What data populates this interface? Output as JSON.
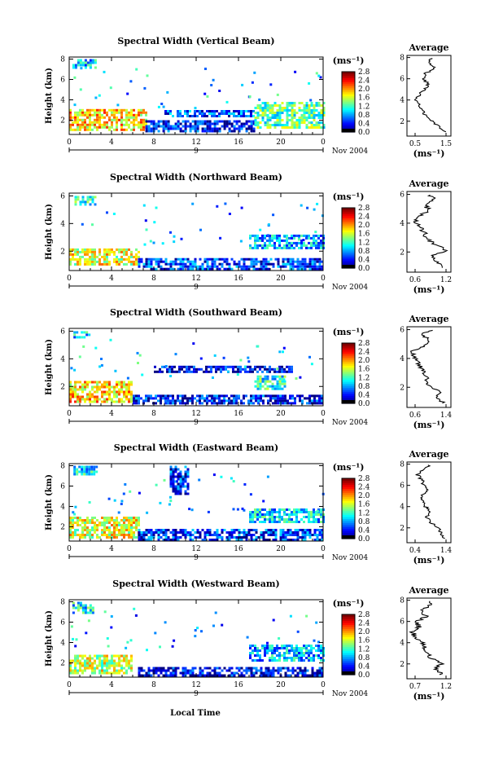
{
  "figure": {
    "xlabel": "Local Time",
    "date_label": "Nov 2004",
    "day_label": "9",
    "ylabel": "Height (km)",
    "unit_label": "(ms⁻¹)",
    "avg_title": "Average",
    "avg_xlabel": "(ms⁻¹)"
  },
  "chart_data": [
    {
      "type": "heatmap",
      "title": "Spectral Width (Vertical Beam)",
      "xlabel": "",
      "ylabel": "Height (km)",
      "xlim": [
        0,
        24
      ],
      "ylim": [
        0.6,
        8.2
      ],
      "xticks": [
        "0",
        "4",
        "8",
        "12",
        "16",
        "20",
        "0"
      ],
      "yticks": [
        "2",
        "4",
        "6",
        "8"
      ],
      "colorbar": {
        "label": "(ms⁻¹)",
        "ticks": [
          "0.0",
          "0.4",
          "0.8",
          "1.2",
          "1.6",
          "2.0",
          "2.4",
          "2.8"
        ],
        "range": [
          0,
          3.0
        ]
      },
      "regions": [
        {
          "t0": 0,
          "t1": 7.2,
          "h0": 1.1,
          "h1": 3.1,
          "level": 2.0
        },
        {
          "t0": 7.2,
          "t1": 17.5,
          "h0": 1.0,
          "h1": 2.0,
          "level": 0.4
        },
        {
          "t0": 9,
          "t1": 17.5,
          "h0": 2.5,
          "h1": 3.0,
          "level": 0.6
        },
        {
          "t0": 17.5,
          "t1": 24,
          "h0": 1.3,
          "h1": 3.8,
          "level": 1.4
        },
        {
          "t0": 0.3,
          "t1": 2.5,
          "h0": 7.2,
          "h1": 8.0,
          "level": 1.0
        }
      ],
      "average": {
        "xticks": [
          "0.5",
          "1.5"
        ],
        "xlim": [
          0.3,
          1.7
        ],
        "ylim": [
          0.6,
          8.2
        ],
        "yticks": [
          "2",
          "4",
          "6",
          "8"
        ],
        "h": [
          1.0,
          1.5,
          2.0,
          2.5,
          3.0,
          3.5,
          4.0,
          4.5,
          5.0,
          5.5,
          6.0,
          6.5,
          7.0,
          7.5,
          8.0
        ],
        "v": [
          1.5,
          1.3,
          1.1,
          0.9,
          0.8,
          0.7,
          0.55,
          0.7,
          0.85,
          1.0,
          0.8,
          0.9,
          1.2,
          1.0,
          1.1
        ]
      }
    },
    {
      "type": "heatmap",
      "title": "Spectral Width (Northward Beam)",
      "xlabel": "",
      "ylabel": "Height (km)",
      "xlim": [
        0,
        24
      ],
      "ylim": [
        0.6,
        6.2
      ],
      "xticks": [
        "0",
        "4",
        "8",
        "12",
        "16",
        "20",
        "0"
      ],
      "yticks": [
        "2",
        "4",
        "6"
      ],
      "colorbar": {
        "label": "(ms⁻¹)",
        "ticks": [
          "0.0",
          "0.4",
          "0.8",
          "1.2",
          "1.6",
          "2.0",
          "2.4",
          "2.8"
        ],
        "range": [
          0,
          3.0
        ]
      },
      "regions": [
        {
          "t0": 0,
          "t1": 6.5,
          "h0": 1.0,
          "h1": 2.2,
          "level": 1.8
        },
        {
          "t0": 6.5,
          "t1": 24,
          "h0": 0.7,
          "h1": 1.5,
          "level": 0.5
        },
        {
          "t0": 17,
          "t1": 24,
          "h0": 2.2,
          "h1": 3.2,
          "level": 0.9
        },
        {
          "t0": 0.5,
          "t1": 2.5,
          "h0": 5.4,
          "h1": 6.0,
          "level": 1.2
        }
      ],
      "average": {
        "xticks": [
          "0.6",
          "1.2"
        ],
        "xlim": [
          0.4,
          1.4
        ],
        "ylim": [
          0.6,
          6.2
        ],
        "yticks": [
          "2",
          "4",
          "6"
        ],
        "h": [
          0.9,
          1.3,
          1.7,
          2.1,
          2.5,
          2.9,
          3.3,
          3.7,
          4.1,
          4.5,
          4.9,
          5.3,
          5.7,
          6.0
        ],
        "v": [
          1.2,
          1.1,
          0.95,
          1.3,
          1.05,
          0.85,
          0.8,
          0.7,
          0.6,
          0.7,
          0.9,
          0.8,
          1.0,
          0.9
        ]
      }
    },
    {
      "type": "heatmap",
      "title": "Spectral Width (Southward Beam)",
      "xlabel": "",
      "ylabel": "Height (km)",
      "xlim": [
        0,
        24
      ],
      "ylim": [
        0.6,
        6.2
      ],
      "xticks": [
        "0",
        "4",
        "8",
        "12",
        "16",
        "20",
        "0"
      ],
      "yticks": [
        "2",
        "4",
        "6"
      ],
      "colorbar": {
        "label": "(ms⁻¹)",
        "ticks": [
          "0.0",
          "0.4",
          "0.8",
          "1.2",
          "1.6",
          "2.0",
          "2.4",
          "2.8"
        ],
        "range": [
          0,
          3.0
        ]
      },
      "regions": [
        {
          "t0": 0,
          "t1": 5.8,
          "h0": 0.9,
          "h1": 2.4,
          "level": 2.0
        },
        {
          "t0": 6,
          "t1": 24,
          "h0": 0.7,
          "h1": 1.4,
          "level": 0.4
        },
        {
          "t0": 8,
          "t1": 21,
          "h0": 3.0,
          "h1": 3.5,
          "level": 0.3
        },
        {
          "t0": 17.5,
          "t1": 20.5,
          "h0": 1.8,
          "h1": 2.8,
          "level": 1.2
        },
        {
          "t0": 0.4,
          "t1": 2.2,
          "h0": 5.5,
          "h1": 6.0,
          "level": 1.0
        }
      ],
      "average": {
        "xticks": [
          "0.6",
          "1.4"
        ],
        "xlim": [
          0.4,
          1.6
        ],
        "ylim": [
          0.6,
          6.2
        ],
        "yticks": [
          "2",
          "4",
          "6"
        ],
        "h": [
          0.9,
          1.3,
          1.7,
          2.1,
          2.5,
          2.9,
          3.3,
          3.7,
          4.1,
          4.5,
          4.9,
          5.3,
          5.7,
          6.0
        ],
        "v": [
          1.4,
          1.2,
          1.3,
          1.0,
          0.95,
          0.9,
          0.8,
          0.7,
          0.6,
          0.55,
          0.9,
          1.0,
          0.8,
          1.1
        ]
      }
    },
    {
      "type": "heatmap",
      "title": "Spectral Width (Eastward Beam)",
      "xlabel": "",
      "ylabel": "Height (km)",
      "xlim": [
        0,
        24
      ],
      "ylim": [
        0.6,
        8.2
      ],
      "xticks": [
        "0",
        "4",
        "8",
        "12",
        "16",
        "20",
        "0"
      ],
      "yticks": [
        "2",
        "4",
        "6",
        "8"
      ],
      "colorbar": {
        "label": "(ms⁻¹)",
        "ticks": [
          "0.0",
          "0.4",
          "0.8",
          "1.2",
          "1.6",
          "2.0",
          "2.4",
          "2.8"
        ],
        "range": [
          0,
          3.0
        ]
      },
      "regions": [
        {
          "t0": 0,
          "t1": 6.5,
          "h0": 1.0,
          "h1": 3.0,
          "level": 1.8
        },
        {
          "t0": 6.5,
          "t1": 24,
          "h0": 0.8,
          "h1": 1.8,
          "level": 0.5
        },
        {
          "t0": 17,
          "t1": 24,
          "h0": 2.5,
          "h1": 3.8,
          "level": 1.0
        },
        {
          "t0": 0.4,
          "t1": 2.5,
          "h0": 7.2,
          "h1": 8.0,
          "level": 1.1
        },
        {
          "t0": 9.5,
          "t1": 11.2,
          "h0": 5.2,
          "h1": 8.0,
          "level": 0.5
        }
      ],
      "average": {
        "xticks": [
          "0.4",
          "1.4"
        ],
        "xlim": [
          0.3,
          1.6
        ],
        "ylim": [
          0.6,
          8.2
        ],
        "yticks": [
          "2",
          "4",
          "6",
          "8"
        ],
        "h": [
          1.0,
          1.5,
          2.0,
          2.5,
          3.0,
          3.5,
          4.0,
          4.5,
          5.0,
          5.5,
          6.0,
          6.5,
          7.0,
          7.5,
          8.0
        ],
        "v": [
          1.4,
          1.3,
          1.25,
          1.0,
          0.9,
          1.0,
          0.85,
          0.8,
          0.7,
          0.9,
          0.8,
          0.75,
          0.6,
          0.8,
          1.0
        ]
      }
    },
    {
      "type": "heatmap",
      "title": "Spectral Width (Westward Beam)",
      "xlabel": "Local Time",
      "ylabel": "Height (km)",
      "xlim": [
        0,
        24
      ],
      "ylim": [
        0.6,
        8.2
      ],
      "xticks": [
        "0",
        "4",
        "8",
        "12",
        "16",
        "20",
        "0"
      ],
      "yticks": [
        "2",
        "4",
        "6",
        "8"
      ],
      "colorbar": {
        "label": "(ms⁻¹)",
        "ticks": [
          "0.0",
          "0.4",
          "0.8",
          "1.2",
          "1.6",
          "2.0",
          "2.4",
          "2.8"
        ],
        "range": [
          0,
          3.0
        ]
      },
      "regions": [
        {
          "t0": 0,
          "t1": 6,
          "h0": 1.1,
          "h1": 2.8,
          "level": 1.7
        },
        {
          "t0": 6.5,
          "t1": 24,
          "h0": 0.8,
          "h1": 1.6,
          "level": 0.3
        },
        {
          "t0": 17,
          "t1": 24,
          "h0": 2.2,
          "h1": 3.8,
          "level": 0.9
        },
        {
          "t0": 0.3,
          "t1": 2.2,
          "h0": 7.0,
          "h1": 8.0,
          "level": 1.1
        }
      ],
      "average": {
        "xticks": [
          "0.7",
          "1.2"
        ],
        "xlim": [
          0.5,
          1.4
        ],
        "ylim": [
          0.6,
          8.2
        ],
        "yticks": [
          "2",
          "4",
          "6",
          "8"
        ],
        "h": [
          1.0,
          1.5,
          2.0,
          2.5,
          3.0,
          3.5,
          4.0,
          4.5,
          5.0,
          5.5,
          6.0,
          6.5,
          7.0,
          7.5,
          8.0
        ],
        "v": [
          1.2,
          1.1,
          1.2,
          1.0,
          0.95,
          0.85,
          0.8,
          0.7,
          0.6,
          0.75,
          0.7,
          0.9,
          0.8,
          0.95,
          1.0
        ]
      }
    }
  ]
}
